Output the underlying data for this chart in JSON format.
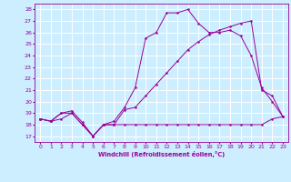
{
  "xlabel": "Windchill (Refroidissement éolien,°C)",
  "bg_color": "#cceeff",
  "grid_color": "#ffffff",
  "line_color": "#990099",
  "xlim": [
    -0.5,
    23.5
  ],
  "ylim": [
    16.5,
    28.5
  ],
  "yticks": [
    17,
    18,
    19,
    20,
    21,
    22,
    23,
    24,
    25,
    26,
    27,
    28
  ],
  "xticks": [
    0,
    1,
    2,
    3,
    4,
    5,
    6,
    7,
    8,
    9,
    10,
    11,
    12,
    13,
    14,
    15,
    16,
    17,
    18,
    19,
    20,
    21,
    22,
    23
  ],
  "line1_x": [
    0,
    1,
    2,
    3,
    4,
    5,
    6,
    7,
    8,
    9,
    10,
    11,
    12,
    13,
    14,
    15,
    16,
    17,
    18,
    19,
    20,
    21,
    22,
    23
  ],
  "line1_y": [
    18.5,
    18.3,
    19.0,
    19.2,
    18.2,
    17.0,
    18.0,
    18.3,
    19.5,
    21.2,
    25.5,
    26.0,
    27.7,
    27.7,
    28.0,
    26.8,
    26.0,
    26.0,
    26.2,
    25.7,
    24.0,
    21.2,
    20.0,
    18.7
  ],
  "line2_x": [
    0,
    1,
    2,
    3,
    4,
    5,
    6,
    7,
    8,
    9,
    10,
    11,
    12,
    13,
    14,
    15,
    16,
    17,
    18,
    19,
    20,
    21,
    22,
    23
  ],
  "line2_y": [
    18.5,
    18.3,
    19.0,
    19.0,
    18.0,
    17.0,
    18.0,
    18.0,
    19.3,
    19.5,
    20.5,
    21.5,
    22.5,
    23.5,
    24.5,
    25.2,
    25.8,
    26.2,
    26.5,
    26.8,
    27.0,
    21.0,
    20.5,
    18.7
  ],
  "line3_x": [
    0,
    1,
    2,
    3,
    4,
    5,
    6,
    7,
    8,
    9,
    10,
    11,
    12,
    13,
    14,
    15,
    16,
    17,
    18,
    19,
    20,
    21,
    22,
    23
  ],
  "line3_y": [
    18.5,
    18.3,
    18.5,
    19.0,
    18.0,
    17.0,
    18.0,
    18.0,
    18.0,
    18.0,
    18.0,
    18.0,
    18.0,
    18.0,
    18.0,
    18.0,
    18.0,
    18.0,
    18.0,
    18.0,
    18.0,
    18.0,
    18.5,
    18.7
  ]
}
